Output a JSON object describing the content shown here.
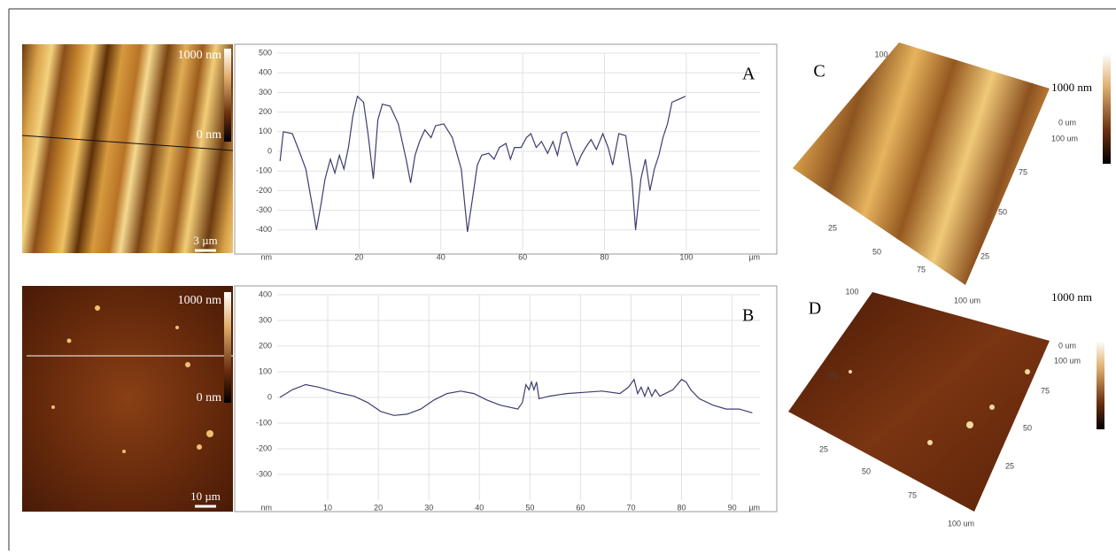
{
  "chart_data": [
    {
      "type": "line",
      "label": "A",
      "xlabel": "µm",
      "ylabel": "nm",
      "color": "#3d3d70",
      "x": [
        0.7,
        1.5,
        3.7,
        5.4,
        7,
        8.5,
        9.6,
        10.7,
        11.7,
        13,
        14.1,
        15.2,
        16.3,
        17.4,
        18.5,
        19.6,
        21.1,
        22.2,
        23.5,
        24.6,
        25.7,
        27.6,
        29.6,
        31.5,
        32.6,
        33.7,
        34.8,
        36.1,
        37.6,
        38.7,
        40.7,
        42.8,
        45,
        46.5,
        47.8,
        48.9,
        50,
        51.7,
        53,
        54.3,
        55.9,
        57,
        58,
        59.6,
        60.9,
        62,
        63.3,
        64.6,
        66.1,
        67.4,
        68.5,
        69.6,
        70.7,
        72.2,
        73.3,
        74.3,
        75.4,
        76.7,
        78,
        79.6,
        80.9,
        82,
        83.5,
        85.2,
        86.7,
        87.6,
        88.9,
        90,
        91.1,
        92.2,
        93.3,
        94.3,
        95.4,
        96.5,
        98.7,
        99.8
      ],
      "values": [
        -50,
        100,
        90,
        0,
        -90,
        -270,
        -400,
        -270,
        -140,
        -40,
        -110,
        -20,
        -90,
        20,
        180,
        280,
        250,
        90,
        -140,
        160,
        240,
        230,
        140,
        -40,
        -160,
        -20,
        50,
        110,
        70,
        130,
        140,
        70,
        -90,
        -410,
        -230,
        -70,
        -20,
        -10,
        -40,
        20,
        40,
        -40,
        20,
        20,
        70,
        90,
        20,
        50,
        -10,
        50,
        -20,
        90,
        100,
        0,
        -70,
        -20,
        20,
        60,
        10,
        90,
        20,
        -70,
        90,
        80,
        -140,
        -400,
        -140,
        -40,
        -200,
        -90,
        -20,
        70,
        140,
        250,
        270,
        280
      ],
      "xlim": [
        0,
        118
      ],
      "ylim": [
        -500,
        500
      ],
      "xticks": [
        20,
        40,
        60,
        80,
        100
      ],
      "yticks": [
        -400,
        -300,
        -200,
        -100,
        0,
        100,
        200,
        300,
        400,
        500
      ],
      "grid": true
    },
    {
      "type": "line",
      "label": "B",
      "xlabel": "µm",
      "ylabel": "nm",
      "color": "#3d3d70",
      "x": [
        0.5,
        3,
        5.6,
        8.2,
        11.7,
        15.2,
        17.9,
        20.5,
        23.1,
        25.7,
        28.4,
        31,
        33.6,
        36.3,
        38.9,
        41.5,
        44.1,
        47.6,
        48.5,
        49.2,
        49.8,
        50.3,
        50.8,
        51.3,
        51.8,
        53.8,
        57.3,
        60.8,
        64.3,
        67.8,
        69.5,
        70.6,
        71.3,
        72,
        72.7,
        73.4,
        74.1,
        74.8,
        75.7,
        78.3,
        80,
        80.9,
        81.8,
        83.5,
        86.2,
        88.8,
        91.4,
        94
      ],
      "values": [
        0,
        30,
        50,
        40,
        20,
        5,
        -20,
        -55,
        -70,
        -65,
        -45,
        -10,
        15,
        25,
        15,
        -10,
        -30,
        -45,
        -20,
        50,
        30,
        60,
        30,
        60,
        -5,
        5,
        15,
        20,
        25,
        15,
        40,
        70,
        15,
        40,
        5,
        40,
        5,
        30,
        5,
        30,
        70,
        60,
        30,
        -5,
        -30,
        -45,
        -45,
        -60
      ],
      "xlim": [
        0,
        95.5
      ],
      "ylim": [
        -400,
        400
      ],
      "xticks": [
        10,
        20,
        30,
        40,
        50,
        60,
        70,
        80,
        90
      ],
      "yticks": [
        -300,
        -200,
        -100,
        0,
        100,
        200,
        300,
        400
      ],
      "grid": true
    }
  ],
  "figure": {
    "images": [
      {
        "top": "1000 nm",
        "bottom": "0 nm",
        "scale": "3 µm"
      },
      {
        "top": "1000 nm",
        "bottom": "0 nm",
        "scale": "10 µm"
      }
    ],
    "surfaces": [
      {
        "label": "C",
        "height": "1000 nm",
        "labels": [
          "100",
          "25",
          "50",
          "75",
          "100 um",
          "25",
          "50",
          "75",
          "100 um",
          "0 um"
        ]
      },
      {
        "label": "D",
        "height": "1000 nm",
        "labels": [
          "100",
          "25",
          "25",
          "50",
          "75",
          "100 um",
          "25",
          "50",
          "75",
          "100 um",
          "0 um"
        ]
      }
    ]
  }
}
